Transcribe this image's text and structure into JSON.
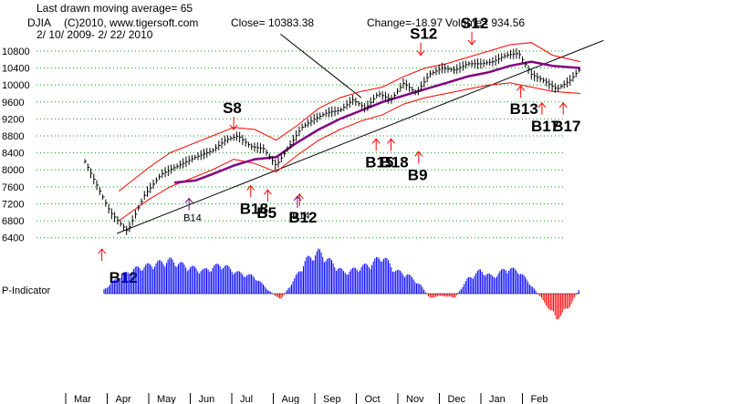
{
  "header": {
    "line1": "Last drawn moving average= 65",
    "ticker": "DJIA",
    "copyright": "(C)2010, www.tigersoft.com",
    "close": "Close=   10383.38",
    "change": "Change=-18.97",
    "volume": "Volume=  934.56",
    "range": "2/ 10/ 2009- 2/ 22/ 2010"
  },
  "colors": {
    "price": "#000000",
    "band": "#ff0000",
    "ma": "#800080",
    "signal_arrow": "#ff0000",
    "buy_arrow": "#800080",
    "grid": "#00aa00",
    "p_positive": "#0000ff",
    "p_negative": "#ff0000"
  },
  "chart_data": {
    "type": "line",
    "title": "",
    "y_ticks": [
      10800,
      10400,
      10000,
      9600,
      9200,
      8800,
      8400,
      8000,
      7600,
      7200,
      6800,
      6400
    ],
    "ylim": [
      6200,
      11100
    ],
    "x_ticks": [
      "Mar",
      "Apr",
      "May",
      "Jun",
      "Jul",
      "Aug",
      "Sep",
      "Oct",
      "Nov",
      "Dec",
      "Jan",
      "Feb"
    ],
    "grid": true,
    "series": [
      {
        "role": "price",
        "x": [
          0,
          0.3,
          0.6,
          1.0,
          1.4,
          1.8,
          2.2,
          2.6,
          3.0,
          3.3,
          3.6,
          3.9,
          4.2,
          4.5,
          4.8,
          5.1,
          5.4,
          5.7,
          6.0,
          6.3,
          6.6,
          6.9,
          7.2,
          7.5,
          7.8,
          8.1,
          8.4,
          8.7,
          9.0,
          9.3,
          9.6,
          9.9,
          10.2,
          10.5,
          10.8,
          11.1,
          11.4,
          11.65
        ],
        "values": [
          8200,
          7600,
          7000,
          6550,
          7400,
          7900,
          8100,
          8300,
          8450,
          8700,
          8800,
          8550,
          8500,
          8100,
          8550,
          9000,
          9200,
          9350,
          9400,
          9650,
          9450,
          9800,
          9650,
          10050,
          9800,
          10250,
          10400,
          10350,
          10500,
          10500,
          10550,
          10700,
          10750,
          10250,
          10100,
          9900,
          10100,
          10383
        ]
      },
      {
        "role": "upper-band",
        "x": [
          0.8,
          1.5,
          2.0,
          2.5,
          3.0,
          3.5,
          4.0,
          4.5,
          5.0,
          5.5,
          6.0,
          6.5,
          7.0,
          7.5,
          8.0,
          8.5,
          9.0,
          9.5,
          10.0,
          10.5,
          11.0,
          11.65
        ],
        "values": [
          7500,
          8050,
          8400,
          8600,
          8800,
          9000,
          8950,
          8700,
          9050,
          9450,
          9700,
          9850,
          9950,
          10200,
          10400,
          10500,
          10650,
          10800,
          10950,
          11000,
          10700,
          10550
        ]
      },
      {
        "role": "lower-band",
        "x": [
          0.8,
          1.5,
          2.0,
          2.5,
          3.0,
          3.5,
          4.0,
          4.5,
          5.0,
          5.5,
          6.0,
          6.5,
          7.0,
          7.5,
          8.0,
          8.5,
          9.0,
          9.5,
          10.0,
          10.5,
          11.0,
          11.65
        ],
        "values": [
          6800,
          7300,
          7600,
          7800,
          8000,
          8250,
          8150,
          7950,
          8350,
          8700,
          8950,
          9150,
          9300,
          9550,
          9700,
          9800,
          9900,
          10000,
          10050,
          9950,
          9850,
          9800
        ]
      },
      {
        "role": "moving-average",
        "x": [
          2.1,
          2.6,
          3.0,
          3.5,
          4.0,
          4.5,
          5.0,
          5.5,
          6.0,
          6.5,
          7.0,
          7.5,
          8.0,
          8.5,
          9.0,
          9.5,
          10.0,
          10.5,
          11.0,
          11.65
        ],
        "values": [
          7700,
          7750,
          7900,
          8100,
          8250,
          8300,
          8650,
          8950,
          9200,
          9400,
          9600,
          9750,
          9900,
          10050,
          10200,
          10300,
          10450,
          10550,
          10450,
          10400
        ]
      }
    ],
    "trendlines": [
      {
        "x": [
          0.75,
          12.2
        ],
        "values": [
          6500,
          11050
        ]
      },
      {
        "x": [
          4.6,
          6.5
        ],
        "values": [
          11200,
          9700
        ]
      }
    ],
    "signals": [
      {
        "label": "S8",
        "size": "big",
        "color": "red",
        "dir": "down",
        "x": 3.5,
        "value": 8950
      },
      {
        "label": "S12",
        "size": "big",
        "color": "red",
        "dir": "down",
        "x": 7.9,
        "value": 10700
      },
      {
        "label": "S12",
        "size": "big",
        "color": "red",
        "dir": "down",
        "x": 9.1,
        "value": 10950
      },
      {
        "label": "B12",
        "size": "big",
        "color": "red",
        "dir": "up",
        "x": 0.4,
        "value": 0
      },
      {
        "label": "B14",
        "size": "small",
        "color": "purple",
        "dir": "up",
        "x": 2.45,
        "value": 7050
      },
      {
        "label": "B18",
        "size": "big",
        "color": "red",
        "dir": "up",
        "x": 3.9,
        "value": 7350
      },
      {
        "label": "B5",
        "size": "big",
        "color": "red",
        "dir": "up",
        "x": 4.3,
        "value": 7250
      },
      {
        "label": "B12",
        "size": "big",
        "color": "red",
        "dir": "up",
        "x": 5.05,
        "value": 7150
      },
      {
        "label": "B14",
        "size": "small",
        "color": "purple",
        "dir": "up",
        "x": 5.0,
        "value": 7100
      },
      {
        "label": "B15",
        "size": "big",
        "color": "red",
        "dir": "up",
        "x": 6.85,
        "value": 8450
      },
      {
        "label": "B18",
        "size": "big",
        "color": "red",
        "dir": "up",
        "x": 7.2,
        "value": 8450
      },
      {
        "label": "B9",
        "size": "big",
        "color": "red",
        "dir": "up",
        "x": 7.85,
        "value": 8150
      },
      {
        "label": "B13",
        "size": "big",
        "color": "red",
        "dir": "up",
        "x": 10.25,
        "value": 9700
      },
      {
        "label": "B17",
        "size": "big",
        "color": "red",
        "dir": "up",
        "x": 10.75,
        "value": 9300
      },
      {
        "label": "B17",
        "size": "big",
        "color": "red",
        "dir": "up",
        "x": 11.25,
        "value": 9300
      }
    ],
    "p_indicator": {
      "label": "P-Indicator",
      "x": [
        0.45,
        0.8,
        1.2,
        1.6,
        2.0,
        2.4,
        2.8,
        3.2,
        3.6,
        4.0,
        4.3,
        4.6,
        4.9,
        5.2,
        5.5,
        5.8,
        6.1,
        6.4,
        6.7,
        7.0,
        7.3,
        7.6,
        7.9,
        8.1,
        8.4,
        8.7,
        9.0,
        9.3,
        9.6,
        9.9,
        10.2,
        10.5,
        10.8,
        11.1,
        11.4,
        11.65
      ],
      "values": [
        0.1,
        0.4,
        0.6,
        0.7,
        0.8,
        0.65,
        0.55,
        0.7,
        0.5,
        0.4,
        0.1,
        -0.15,
        0.3,
        0.8,
        1.0,
        0.75,
        0.5,
        0.6,
        0.7,
        0.9,
        0.55,
        0.45,
        0.2,
        -0.1,
        -0.05,
        -0.1,
        0.35,
        0.55,
        0.4,
        0.6,
        0.55,
        0.2,
        -0.2,
        -0.6,
        -0.3,
        0.15
      ]
    }
  }
}
